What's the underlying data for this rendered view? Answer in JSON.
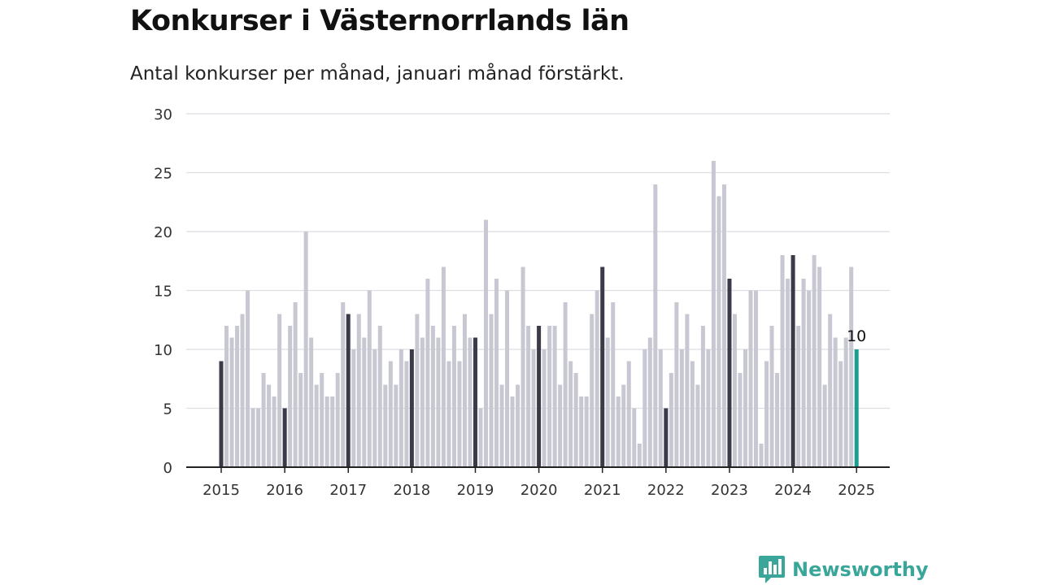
{
  "chart_data": {
    "type": "bar",
    "title": "Konkurser i Västernorrlands län",
    "subtitle": "Antal konkurser per månad, januari månad förstärkt.",
    "xlabel": "",
    "ylabel": "",
    "ylim": [
      0,
      30
    ],
    "yticks": [
      0,
      5,
      10,
      15,
      20,
      25,
      30
    ],
    "xtick_labels": [
      "2015",
      "2016",
      "2017",
      "2018",
      "2019",
      "2020",
      "2021",
      "2022",
      "2023",
      "2024",
      "2025"
    ],
    "grid": true,
    "highlight_color": "#3a3a48",
    "base_color": "#c8c8d2",
    "latest_color": "#1a9e8f",
    "latest_label": "10",
    "series": [
      {
        "values": [
          9,
          12,
          11,
          12,
          13,
          15,
          5,
          5,
          8,
          7,
          6,
          13,
          5,
          12,
          14,
          8,
          20,
          11,
          7,
          8,
          6,
          6,
          8,
          14,
          13,
          10,
          13,
          11,
          15,
          10,
          12,
          7,
          9,
          7,
          10,
          9,
          10,
          13,
          11,
          16,
          12,
          11,
          17,
          9,
          12,
          9,
          13,
          11,
          11,
          5,
          21,
          13,
          16,
          7,
          15,
          6,
          7,
          17,
          12,
          10,
          12,
          10,
          12,
          12,
          7,
          14,
          9,
          8,
          6,
          6,
          13,
          15,
          17,
          11,
          14,
          6,
          7,
          9,
          5,
          2,
          10,
          11,
          24,
          10,
          5,
          8,
          14,
          10,
          13,
          9,
          7,
          12,
          10,
          26,
          23,
          24,
          16,
          13,
          8,
          10,
          15,
          15,
          2,
          9,
          12,
          8,
          18,
          16,
          18,
          12,
          16,
          15,
          18,
          17,
          7,
          13,
          11,
          9,
          11,
          17,
          10
        ]
      }
    ]
  },
  "brand": {
    "name": "Newsworthy",
    "logo_icon": "bar-chart-speech-bubble-icon",
    "color": "#3aa69a"
  }
}
